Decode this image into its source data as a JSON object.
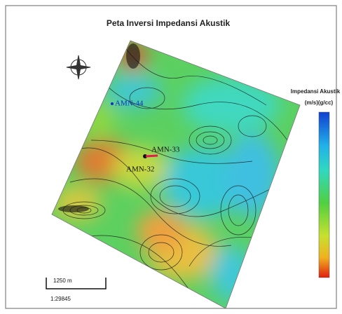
{
  "title": "Peta Inversi Impedansi Akustik",
  "wells": [
    {
      "label": "AMN-44"
    },
    {
      "label": "AMN-33"
    },
    {
      "label": "AMN-32"
    }
  ],
  "legend": {
    "title": "Impedansi Akustik",
    "unit": "(m/s)(g/cc)"
  },
  "scale_bar": {
    "length": "1250 m",
    "ratio": "1:29845"
  }
}
